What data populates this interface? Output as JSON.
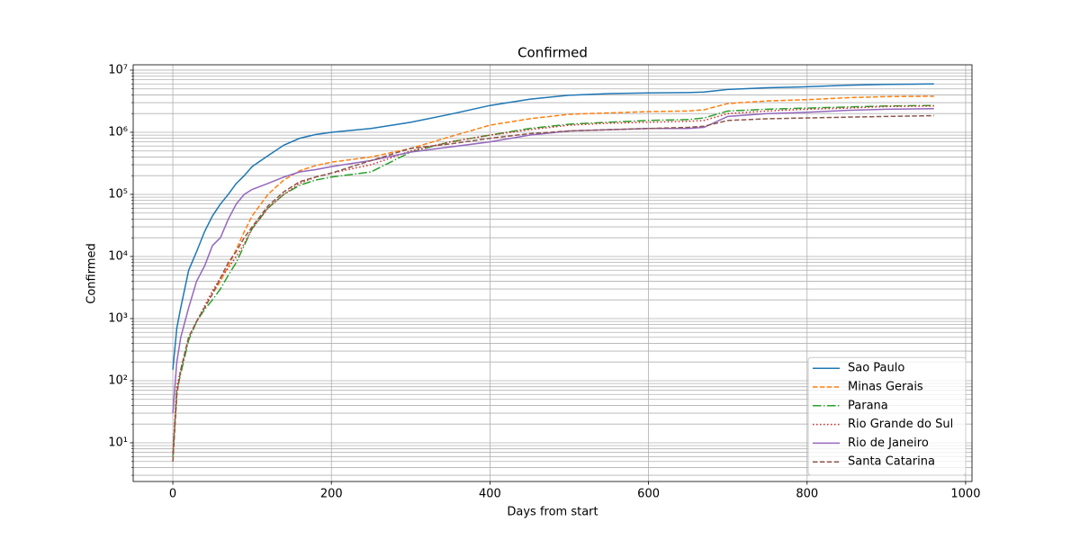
{
  "chart_data": {
    "type": "line",
    "title": "Confirmed",
    "x_label": "Days from start",
    "y_label": "Confirmed",
    "x": [
      0,
      5,
      10,
      20,
      30,
      40,
      50,
      60,
      70,
      80,
      90,
      100,
      120,
      140,
      160,
      180,
      200,
      250,
      300,
      350,
      400,
      450,
      500,
      550,
      600,
      650,
      670,
      700,
      750,
      800,
      850,
      900,
      960
    ],
    "series": [
      {
        "name": "Sao Paulo",
        "color": "#1f77b4",
        "linestyle": "solid",
        "values": [
          150,
          700,
          1500,
          6000,
          12000,
          25000,
          45000,
          70000,
          100000,
          150000,
          200000,
          280000,
          420000,
          620000,
          800000,
          920000,
          1000000,
          1150000,
          1450000,
          1950000,
          2700000,
          3400000,
          3950000,
          4200000,
          4300000,
          4350000,
          4450000,
          4900000,
          5200000,
          5400000,
          5700000,
          5900000,
          6000000
        ]
      },
      {
        "name": "Minas Gerais",
        "color": "#ff7f0e",
        "linestyle": "dashed",
        "values": [
          5,
          60,
          150,
          500,
          900,
          1500,
          2500,
          4000,
          7000,
          13000,
          25000,
          45000,
          100000,
          170000,
          240000,
          290000,
          330000,
          400000,
          550000,
          850000,
          1300000,
          1650000,
          1950000,
          2050000,
          2150000,
          2200000,
          2300000,
          2900000,
          3200000,
          3350000,
          3600000,
          3750000,
          3800000
        ]
      },
      {
        "name": "Parana",
        "color": "#2ca02c",
        "linestyle": "dashdot",
        "values": [
          6,
          70,
          130,
          450,
          900,
          1400,
          2000,
          3000,
          5000,
          8000,
          15000,
          28000,
          60000,
          100000,
          140000,
          170000,
          190000,
          230000,
          480000,
          700000,
          900000,
          1150000,
          1350000,
          1450000,
          1550000,
          1600000,
          1700000,
          2200000,
          2350000,
          2450000,
          2550000,
          2650000,
          2700000
        ]
      },
      {
        "name": "Rio Grande do Sul",
        "color": "#d62728",
        "linestyle": "dotted",
        "values": [
          7,
          80,
          150,
          500,
          900,
          1600,
          2800,
          4500,
          6500,
          10000,
          16000,
          28000,
          60000,
          100000,
          150000,
          190000,
          220000,
          300000,
          500000,
          700000,
          900000,
          1100000,
          1300000,
          1400000,
          1450000,
          1500000,
          1550000,
          2000000,
          2200000,
          2350000,
          2450000,
          2600000,
          2650000
        ]
      },
      {
        "name": "Rio de Janeiro",
        "color": "#9467bd",
        "linestyle": "solid",
        "values": [
          30,
          200,
          500,
          1500,
          4000,
          7000,
          15000,
          20000,
          40000,
          70000,
          100000,
          120000,
          150000,
          190000,
          230000,
          250000,
          280000,
          350000,
          480000,
          580000,
          700000,
          900000,
          1050000,
          1100000,
          1150000,
          1150000,
          1200000,
          1800000,
          2000000,
          2100000,
          2250000,
          2350000,
          2400000
        ]
      },
      {
        "name": "Santa Catarina",
        "color": "#8c564b",
        "linestyle": "dashed",
        "values": [
          5,
          60,
          150,
          500,
          900,
          1500,
          2500,
          4500,
          8000,
          12000,
          20000,
          30000,
          65000,
          110000,
          160000,
          190000,
          220000,
          350000,
          550000,
          650000,
          800000,
          950000,
          1050000,
          1100000,
          1150000,
          1200000,
          1250000,
          1550000,
          1650000,
          1700000,
          1750000,
          1800000,
          1850000
        ]
      }
    ],
    "xlim": [
      -50,
      1008
    ],
    "ylim": [
      2.38,
      12200000
    ],
    "y_scale": "log",
    "xticks": [
      0,
      200,
      400,
      600,
      800,
      1000
    ],
    "yticks": [
      {
        "value": 10,
        "label": "10¹"
      },
      {
        "value": 100,
        "label": "10²"
      },
      {
        "value": 1000,
        "label": "10³"
      },
      {
        "value": 10000,
        "label": "10⁴"
      },
      {
        "value": 100000,
        "label": "10⁵"
      },
      {
        "value": 1000000,
        "label": "10⁶"
      },
      {
        "value": 10000000,
        "label": "10⁷"
      }
    ],
    "grid": true,
    "minor_grid": true,
    "legend": "lower right"
  }
}
